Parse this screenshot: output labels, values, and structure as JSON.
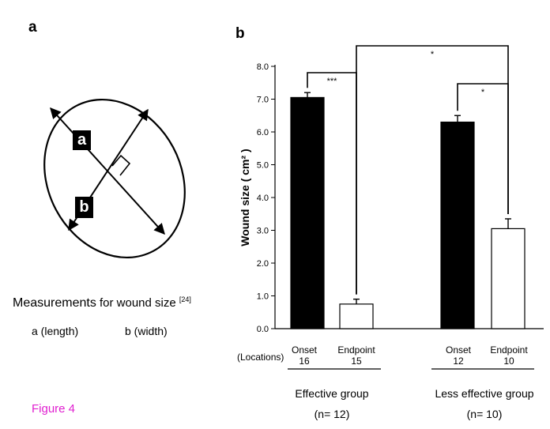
{
  "panel_a": {
    "label": "a",
    "diagram_label_a": "a",
    "diagram_label_b": "b",
    "caption_bold": "Measurements",
    "caption_rest": " for wound size ",
    "caption_ref": "[24]",
    "legend_a": "a (length)",
    "legend_b": "b (width)"
  },
  "figure_label": "Figure 4",
  "colors": {
    "onset": "#000000",
    "endpoint": "#ffffff",
    "figure_label": "#e020d0"
  },
  "panel_b": {
    "label": "b",
    "locations_label": "(Locations)",
    "groups": [
      {
        "name": "Effective group",
        "n": "(n= 12)",
        "onset_count": "16",
        "endpoint_count": "15"
      },
      {
        "name": "Less effective group",
        "n": "(n= 10)",
        "onset_count": "12",
        "endpoint_count": "10"
      }
    ]
  },
  "chart_data": {
    "type": "bar",
    "ylabel": "Wound size ( cm² )",
    "ylim": [
      0,
      8
    ],
    "yticks": [
      "0.0",
      "1.0",
      "2.0",
      "3.0",
      "4.0",
      "5.0",
      "6.0",
      "7.0",
      "8.0"
    ],
    "categories": [
      "Onset",
      "Endpoint",
      "Onset",
      "Endpoint"
    ],
    "groups": [
      "Effective group",
      "Less effective group"
    ],
    "values": [
      7.05,
      0.75,
      6.3,
      3.05
    ],
    "errors": [
      0.15,
      0.15,
      0.2,
      0.3
    ],
    "significance": [
      {
        "between": [
          0,
          1
        ],
        "label": "***"
      },
      {
        "between": [
          2,
          3
        ],
        "label": "*"
      },
      {
        "between": [
          1,
          3
        ],
        "label": "*"
      }
    ]
  }
}
